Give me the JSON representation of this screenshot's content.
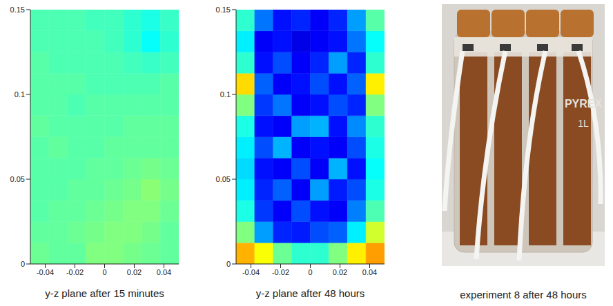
{
  "chart_data": [
    {
      "type": "heatmap",
      "title": "y-z plane after 15 minutes",
      "x": [
        -0.04375,
        -0.03125,
        -0.01875,
        -0.00625,
        0.00625,
        0.01875,
        0.03125,
        0.04375
      ],
      "y": [
        0.00625,
        0.01875,
        0.03125,
        0.04375,
        0.05625,
        0.06875,
        0.08125,
        0.09375,
        0.10625,
        0.11875,
        0.13125,
        0.14375
      ],
      "cells": [
        [
          0.48,
          0.47,
          0.47,
          0.5,
          0.5,
          0.49,
          0.48,
          0.47
        ],
        [
          0.47,
          0.47,
          0.48,
          0.49,
          0.5,
          0.5,
          0.49,
          0.47
        ],
        [
          0.46,
          0.47,
          0.47,
          0.48,
          0.49,
          0.5,
          0.5,
          0.48
        ],
        [
          0.46,
          0.46,
          0.47,
          0.47,
          0.48,
          0.49,
          0.51,
          0.49
        ],
        [
          0.46,
          0.46,
          0.46,
          0.47,
          0.47,
          0.48,
          0.49,
          0.48
        ],
        [
          0.46,
          0.47,
          0.46,
          0.46,
          0.47,
          0.47,
          0.47,
          0.47
        ],
        [
          0.47,
          0.46,
          0.46,
          0.46,
          0.46,
          0.47,
          0.47,
          0.47
        ],
        [
          0.46,
          0.46,
          0.45,
          0.46,
          0.46,
          0.46,
          0.46,
          0.46
        ],
        [
          0.46,
          0.46,
          0.46,
          0.45,
          0.45,
          0.45,
          0.45,
          0.46
        ],
        [
          0.46,
          0.45,
          0.45,
          0.45,
          0.45,
          0.44,
          0.43,
          0.44
        ],
        [
          0.45,
          0.45,
          0.45,
          0.45,
          0.44,
          0.42,
          0.38,
          0.42
        ],
        [
          0.45,
          0.45,
          0.45,
          0.44,
          0.44,
          0.42,
          0.4,
          0.43
        ]
      ],
      "color_range": [
        0,
        1
      ],
      "xlim": [
        -0.05,
        0.05
      ],
      "xticks": [
        -0.04,
        -0.02,
        0,
        0.02,
        0.04
      ],
      "ylim": [
        0,
        0.15
      ],
      "yticks": [
        0,
        0.05,
        0.1,
        0.15
      ]
    },
    {
      "type": "heatmap",
      "title": "y-z plane after 48 hours",
      "x": [
        -0.04375,
        -0.03125,
        -0.01875,
        -0.00625,
        0.00625,
        0.01875,
        0.03125,
        0.04375
      ],
      "y": [
        0.00625,
        0.01875,
        0.03125,
        0.04375,
        0.05625,
        0.06875,
        0.08125,
        0.09375,
        0.10625,
        0.11875,
        0.13125,
        0.14375
      ],
      "cells": [
        [
          0.7,
          0.62,
          0.48,
          0.42,
          0.42,
          0.5,
          0.64,
          0.72
        ],
        [
          0.5,
          0.28,
          0.16,
          0.15,
          0.2,
          0.22,
          0.36,
          0.58
        ],
        [
          0.4,
          0.18,
          0.12,
          0.2,
          0.14,
          0.12,
          0.25,
          0.45
        ],
        [
          0.36,
          0.16,
          0.22,
          0.12,
          0.28,
          0.15,
          0.2,
          0.4
        ],
        [
          0.34,
          0.14,
          0.12,
          0.2,
          0.12,
          0.3,
          0.14,
          0.38
        ],
        [
          0.36,
          0.2,
          0.3,
          0.12,
          0.14,
          0.12,
          0.2,
          0.4
        ],
        [
          0.4,
          0.14,
          0.12,
          0.28,
          0.3,
          0.14,
          0.26,
          0.42
        ],
        [
          0.5,
          0.18,
          0.24,
          0.12,
          0.14,
          0.2,
          0.16,
          0.5
        ],
        [
          0.66,
          0.22,
          0.12,
          0.14,
          0.2,
          0.14,
          0.22,
          0.64
        ],
        [
          0.42,
          0.14,
          0.2,
          0.12,
          0.16,
          0.28,
          0.16,
          0.42
        ],
        [
          0.36,
          0.12,
          0.14,
          0.1,
          0.12,
          0.14,
          0.24,
          0.38
        ],
        [
          0.42,
          0.24,
          0.14,
          0.16,
          0.12,
          0.16,
          0.28,
          0.46
        ]
      ],
      "color_range": [
        0,
        1
      ],
      "xlim": [
        -0.05,
        0.05
      ],
      "xticks": [
        -0.04,
        -0.02,
        0,
        0.02,
        0.04
      ],
      "ylim": [
        0,
        0.15
      ],
      "yticks": [
        0,
        0.05,
        0.1,
        0.15
      ]
    }
  ],
  "photo": {
    "caption": "experiment 8 after 48 hours",
    "texts": [
      "PYREX",
      "1L"
    ]
  }
}
